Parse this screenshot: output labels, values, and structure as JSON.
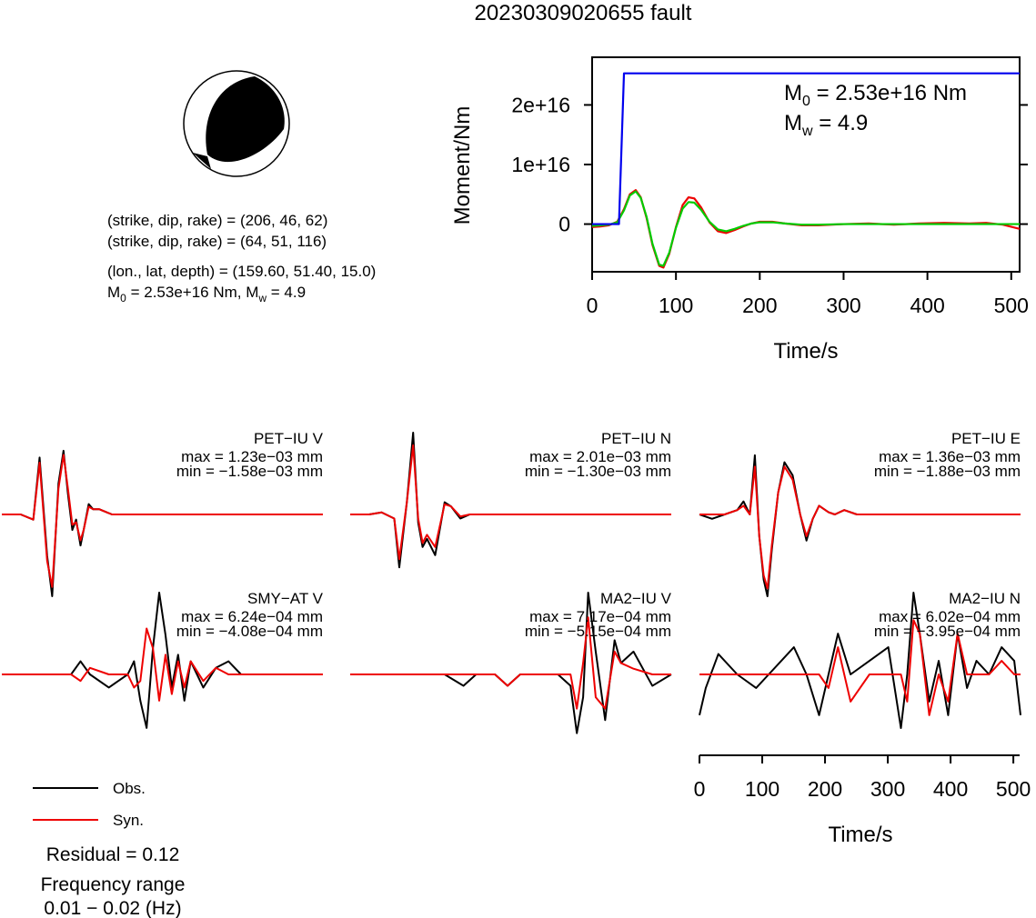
{
  "title": "20230309020655 fault",
  "mechanism": {
    "nodal_plane_1": "(strike, dip, rake) = (206, 46, 62)",
    "nodal_plane_2": "(strike, dip, rake) = (64, 51, 116)",
    "location": "(lon., lat, depth) = (159.60, 51.40, 15.0)",
    "moment_prefix": "M",
    "moment_sub": "0",
    "moment_mid": " = 2.53e+16 Nm, M",
    "mw_sub": "w",
    "mw_suffix": " = 4.9"
  },
  "legend": {
    "obs_label": "Obs.",
    "syn_label": "Syn.",
    "obs_color": "#000000",
    "syn_color": "#ee0000"
  },
  "footer": {
    "residual": "Residual = 0.12",
    "freq_title": "Frequency range",
    "freq_range": "0.01 − 0.02 (Hz)"
  },
  "moment_plot": {
    "ylabel": "Moment/Nm",
    "xlabel": "Time/s",
    "m0_prefix": "M",
    "m0_sub": "0",
    "m0_suffix": " = 2.53e+16 Nm",
    "mw_prefix": "M",
    "mw_sub": "w",
    "mw_suffix": " = 4.9",
    "xticks": [
      "0",
      "100",
      "200",
      "300",
      "400",
      "500"
    ],
    "yticks": [
      "0",
      "1e+16",
      "2e+16"
    ],
    "stf_color": "#0000ee",
    "wave_red_color": "#ee0000",
    "wave_green_color": "#00cc00"
  },
  "time_axis": {
    "xlabel": "Time/s",
    "xticks": [
      "0",
      "100",
      "200",
      "300",
      "400",
      "500"
    ]
  },
  "chart_data": [
    {
      "type": "line",
      "title": "",
      "xlabel": "Time/s",
      "ylabel": "Moment/Nm",
      "xlim": [
        0,
        510
      ],
      "ylim": [
        -8000000000000000.0,
        2.8e+16
      ],
      "series": [
        {
          "color": "#0000ee",
          "x": [
            0,
            32,
            38,
            510
          ],
          "values": [
            0,
            0,
            2.53e+16,
            2.53e+16
          ]
        },
        {
          "color": "#ee0000",
          "x": [
            0,
            10,
            20,
            30,
            38,
            45,
            52,
            58,
            65,
            72,
            80,
            85,
            92,
            100,
            108,
            115,
            122,
            130,
            140,
            150,
            160,
            170,
            180,
            190,
            200,
            215,
            230,
            250,
            270,
            300,
            330,
            360,
            390,
            420,
            450,
            470,
            490,
            510
          ],
          "values": [
            -500000000000000.0,
            -400000000000000.0,
            -200000000000000.0,
            400000000000000.0,
            2500000000000000.0,
            5000000000000000.0,
            5700000000000000.0,
            4500000000000000.0,
            1000000000000000.0,
            -3500000000000000.0,
            -7000000000000000.0,
            -7300000000000000.0,
            -5000000000000000.0,
            -500000000000000.0,
            3200000000000000.0,
            4500000000000000.0,
            4300000000000000.0,
            2800000000000000.0,
            300000000000000.0,
            -1200000000000000.0,
            -1500000000000000.0,
            -1000000000000000.0,
            -400000000000000.0,
            100000000000000.0,
            400000000000000.0,
            400000000000000.0,
            100000000000000.0,
            -200000000000000.0,
            -200000000000000.0,
            0.0,
            100000000000000.0,
            -100000000000000.0,
            100000000000000.0,
            200000000000000.0,
            100000000000000.0,
            200000000000000.0,
            -100000000000000.0,
            -800000000000000.0
          ]
        },
        {
          "color": "#00cc00",
          "x": [
            0,
            10,
            20,
            30,
            38,
            45,
            52,
            58,
            65,
            72,
            80,
            85,
            92,
            100,
            108,
            115,
            122,
            130,
            140,
            150,
            160,
            170,
            180,
            190,
            200,
            215,
            230,
            250,
            270,
            300,
            330,
            360,
            390,
            420,
            450,
            470,
            490,
            510
          ],
          "values": [
            -300000000000000.0,
            -200000000000000.0,
            -100000000000000.0,
            300000000000000.0,
            2300000000000000.0,
            4800000000000000.0,
            5500000000000000.0,
            4400000000000000.0,
            1200000000000000.0,
            -3300000000000000.0,
            -6800000000000000.0,
            -7000000000000000.0,
            -4800000000000000.0,
            -600000000000000.0,
            2600000000000000.0,
            3700000000000000.0,
            3600000000000000.0,
            2400000000000000.0,
            400000000000000.0,
            -900000000000000.0,
            -1200000000000000.0,
            -800000000000000.0,
            -300000000000000.0,
            100000000000000.0,
            300000000000000.0,
            300000000000000.0,
            100000000000000.0,
            -100000000000000.0,
            -100000000000000.0,
            0.0,
            0.0,
            0.0,
            0.0,
            0.0,
            0.0,
            0.0,
            0.0,
            0.0
          ]
        }
      ]
    },
    {
      "type": "line",
      "title": "PET−IU V",
      "max_label": "max = 1.23e−03 mm",
      "min_label": "min = −1.58e−03 mm",
      "xlim": [
        0,
        510
      ],
      "ylim": [
        -0.00158,
        0.00123
      ],
      "series": [
        {
          "name": "Obs.",
          "x": [
            0,
            30,
            50,
            60,
            72,
            80,
            90,
            98,
            105,
            112,
            118,
            125,
            130,
            138,
            145,
            155,
            165,
            175,
            200,
            250,
            300,
            350,
            400,
            450,
            510
          ],
          "values": [
            0,
            0,
            -0.0001,
            0.0011,
            -0.0008,
            -0.00158,
            0.0006,
            0.00123,
            0.0004,
            -0.0003,
            -0.0001,
            -0.0006,
            -0.0003,
            0.0002,
            0.0001,
            0.0001,
            5e-05,
            0,
            0,
            0,
            0,
            0,
            0,
            0,
            0
          ]
        },
        {
          "name": "Syn.",
          "x": [
            0,
            30,
            50,
            60,
            72,
            80,
            90,
            98,
            105,
            112,
            118,
            125,
            130,
            138,
            145,
            155,
            165,
            175,
            200,
            250,
            300,
            350,
            400,
            450,
            510
          ],
          "values": [
            0,
            0,
            -0.0001,
            0.001,
            -0.0009,
            -0.0014,
            0.0005,
            0.00115,
            0.0005,
            -0.0002,
            -0.00015,
            -0.0005,
            -0.0003,
            0.00015,
            0.0001,
            0.0001,
            5e-05,
            0,
            0,
            0,
            0,
            0,
            0,
            0,
            0
          ]
        }
      ]
    },
    {
      "type": "line",
      "title": "PET−IU N",
      "max_label": "max = 2.01e−03 mm",
      "min_label": "min = −1.30e−03 mm",
      "xlim": [
        0,
        510
      ],
      "ylim": [
        -0.0013,
        0.00201
      ],
      "series": [
        {
          "name": "Obs.",
          "x": [
            0,
            30,
            50,
            70,
            78,
            90,
            100,
            108,
            115,
            122,
            135,
            150,
            160,
            175,
            190,
            220,
            260,
            300,
            350,
            400,
            450,
            510
          ],
          "values": [
            0,
            0,
            5e-05,
            -0.0001,
            -0.0013,
            0.0003,
            0.00201,
            -0.0002,
            -0.0008,
            -0.0006,
            -0.001,
            0.0003,
            0.0002,
            -0.0001,
            0,
            0,
            0,
            0,
            0,
            0,
            0,
            0
          ]
        },
        {
          "name": "Syn.",
          "x": [
            0,
            30,
            50,
            70,
            78,
            90,
            100,
            108,
            115,
            122,
            135,
            150,
            160,
            175,
            190,
            220,
            260,
            300,
            350,
            400,
            450,
            510
          ],
          "values": [
            0,
            0,
            5e-05,
            -0.0001,
            -0.0011,
            0.0003,
            0.0017,
            -0.0001,
            -0.0007,
            -0.0005,
            -0.0008,
            0.00025,
            0.0002,
            -5e-05,
            0,
            0,
            0,
            0,
            0,
            0,
            0,
            0
          ]
        }
      ]
    },
    {
      "type": "line",
      "title": "PET−IU E",
      "max_label": "max = 1.36e−03 mm",
      "min_label": "min = −1.88e−03 mm",
      "xlim": [
        0,
        510
      ],
      "ylim": [
        -0.00188,
        0.00136
      ],
      "series": [
        {
          "name": "Obs.",
          "x": [
            0,
            20,
            40,
            60,
            70,
            80,
            88,
            95,
            102,
            108,
            115,
            125,
            135,
            148,
            160,
            170,
            180,
            190,
            205,
            215,
            230,
            250,
            280,
            320,
            360,
            400,
            450,
            510
          ],
          "values": [
            0,
            -0.0001,
            0,
            0.0001,
            0.0003,
            0,
            0.00136,
            -0.0005,
            -0.0015,
            -0.00188,
            -0.0008,
            0.0005,
            0.0012,
            0.0009,
            0,
            -0.0006,
            -0.0001,
            0.0002,
            5e-05,
            0,
            0.0001,
            0,
            0,
            0,
            0,
            0,
            0,
            0
          ]
        },
        {
          "name": "Syn.",
          "x": [
            0,
            20,
            40,
            60,
            70,
            80,
            88,
            95,
            102,
            108,
            115,
            125,
            135,
            148,
            160,
            170,
            180,
            190,
            205,
            215,
            230,
            250,
            280,
            320,
            360,
            400,
            450,
            510
          ],
          "values": [
            0,
            0,
            0,
            0.0001,
            0.0002,
            0,
            0.0011,
            -0.0005,
            -0.0014,
            -0.0017,
            -0.0007,
            0.0005,
            0.0011,
            0.0008,
            0,
            -0.0005,
            -0.0001,
            0.0002,
            5e-05,
            0,
            0.0001,
            0,
            0,
            0,
            0,
            0,
            0,
            0
          ]
        }
      ]
    },
    {
      "type": "line",
      "title": "SMY−AT V",
      "max_label": "max = 6.24e−04 mm",
      "min_label": "min = −4.08e−04 mm",
      "xlim": [
        0,
        510
      ],
      "ylim": [
        -0.000408,
        0.000624
      ],
      "series": [
        {
          "name": "Obs.",
          "x": [
            0,
            40,
            80,
            110,
            125,
            140,
            170,
            200,
            210,
            220,
            230,
            240,
            250,
            260,
            270,
            280,
            290,
            300,
            320,
            340,
            360,
            380,
            400,
            430,
            460,
            490,
            510
          ],
          "values": [
            0,
            0,
            0,
            0,
            0.0001,
            0,
            -0.0001,
            0,
            0.0001,
            -0.0002,
            -0.000408,
            0.0002,
            0.000624,
            0.0003,
            -0.0001,
            0.00015,
            -0.0002,
            0.0001,
            -0.0001,
            5e-05,
            0.0001,
            0,
            0,
            0,
            0,
            0,
            0
          ]
        },
        {
          "name": "Syn.",
          "x": [
            0,
            40,
            80,
            110,
            125,
            140,
            170,
            200,
            210,
            220,
            230,
            240,
            250,
            260,
            270,
            280,
            290,
            300,
            320,
            340,
            360,
            380,
            400,
            430,
            460,
            490,
            510
          ],
          "values": [
            0,
            0,
            0,
            0,
            -5e-05,
            5e-05,
            0,
            0,
            -0.0001,
            -5e-05,
            0.00035,
            0.0002,
            -0.0002,
            0.00015,
            -0.00015,
            0.0001,
            -0.0001,
            0.0001,
            -5e-05,
            5e-05,
            0,
            0,
            0,
            0,
            0,
            0,
            0
          ]
        }
      ]
    },
    {
      "type": "line",
      "title": "MA2−IU V",
      "max_label": "max = 7.17e−04 mm",
      "min_label": "min = −5.15e−04 mm",
      "xlim": [
        0,
        510
      ],
      "ylim": [
        -0.000515,
        0.000717
      ],
      "series": [
        {
          "name": "Obs.",
          "x": [
            0,
            50,
            100,
            150,
            180,
            200,
            230,
            250,
            270,
            300,
            330,
            350,
            360,
            370,
            378,
            390,
            405,
            420,
            430,
            450,
            480,
            510
          ],
          "values": [
            0,
            0,
            0,
            0,
            -0.0001,
            0,
            0,
            -0.0001,
            0,
            0,
            0,
            -0.0001,
            -0.000515,
            -0.0002,
            0.000717,
            0.0002,
            -0.0004,
            0.0003,
            0.0001,
            0.0002,
            -0.0001,
            0
          ]
        },
        {
          "name": "Syn.",
          "x": [
            0,
            50,
            100,
            150,
            180,
            200,
            230,
            250,
            270,
            300,
            330,
            350,
            360,
            370,
            378,
            390,
            405,
            420,
            430,
            450,
            480,
            510
          ],
          "values": [
            0,
            0,
            0,
            0,
            0,
            0,
            0,
            -0.0001,
            0,
            0,
            0,
            0,
            -0.0003,
            0.0001,
            0.0005,
            -0.0002,
            -0.0003,
            0.0002,
            0.0001,
            5e-05,
            0,
            0
          ]
        }
      ]
    },
    {
      "type": "line",
      "title": "MA2−IU N",
      "max_label": "max = 6.02e−04 mm",
      "min_label": "min = −3.95e−04 mm",
      "xlim": [
        0,
        510
      ],
      "ylim": [
        -0.000395,
        0.000602
      ],
      "series": [
        {
          "name": "Obs.",
          "x": [
            0,
            10,
            30,
            60,
            90,
            110,
            130,
            150,
            170,
            190,
            205,
            220,
            240,
            270,
            300,
            320,
            330,
            340,
            350,
            365,
            380,
            395,
            410,
            425,
            440,
            460,
            480,
            500,
            510
          ],
          "values": [
            -0.0003,
            -0.0001,
            0.00015,
            0,
            -0.0001,
            0,
            0.0001,
            0.0002,
            0,
            -0.0003,
            0,
            0.0003,
            0,
            0.0001,
            0.0002,
            -0.000395,
            0,
            0.000602,
            0.0003,
            -0.0002,
            0.0001,
            -0.0003,
            0.0003,
            -0.0001,
            0.0001,
            0,
            0.0002,
            0.0001,
            -0.0003
          ]
        },
        {
          "name": "Syn.",
          "x": [
            0,
            10,
            30,
            60,
            90,
            110,
            130,
            150,
            170,
            190,
            205,
            220,
            240,
            270,
            300,
            320,
            330,
            340,
            350,
            365,
            380,
            395,
            410,
            425,
            440,
            460,
            480,
            500,
            510
          ],
          "values": [
            0,
            0,
            0,
            0,
            0,
            0,
            0,
            0,
            0,
            0,
            -0.0001,
            0.0002,
            -0.0002,
            0,
            0,
            0,
            -0.0002,
            0.0004,
            0.0003,
            -0.0003,
            0,
            -0.0002,
            0.0003,
            0,
            0,
            0,
            0.0001,
            0,
            0
          ]
        }
      ]
    }
  ]
}
